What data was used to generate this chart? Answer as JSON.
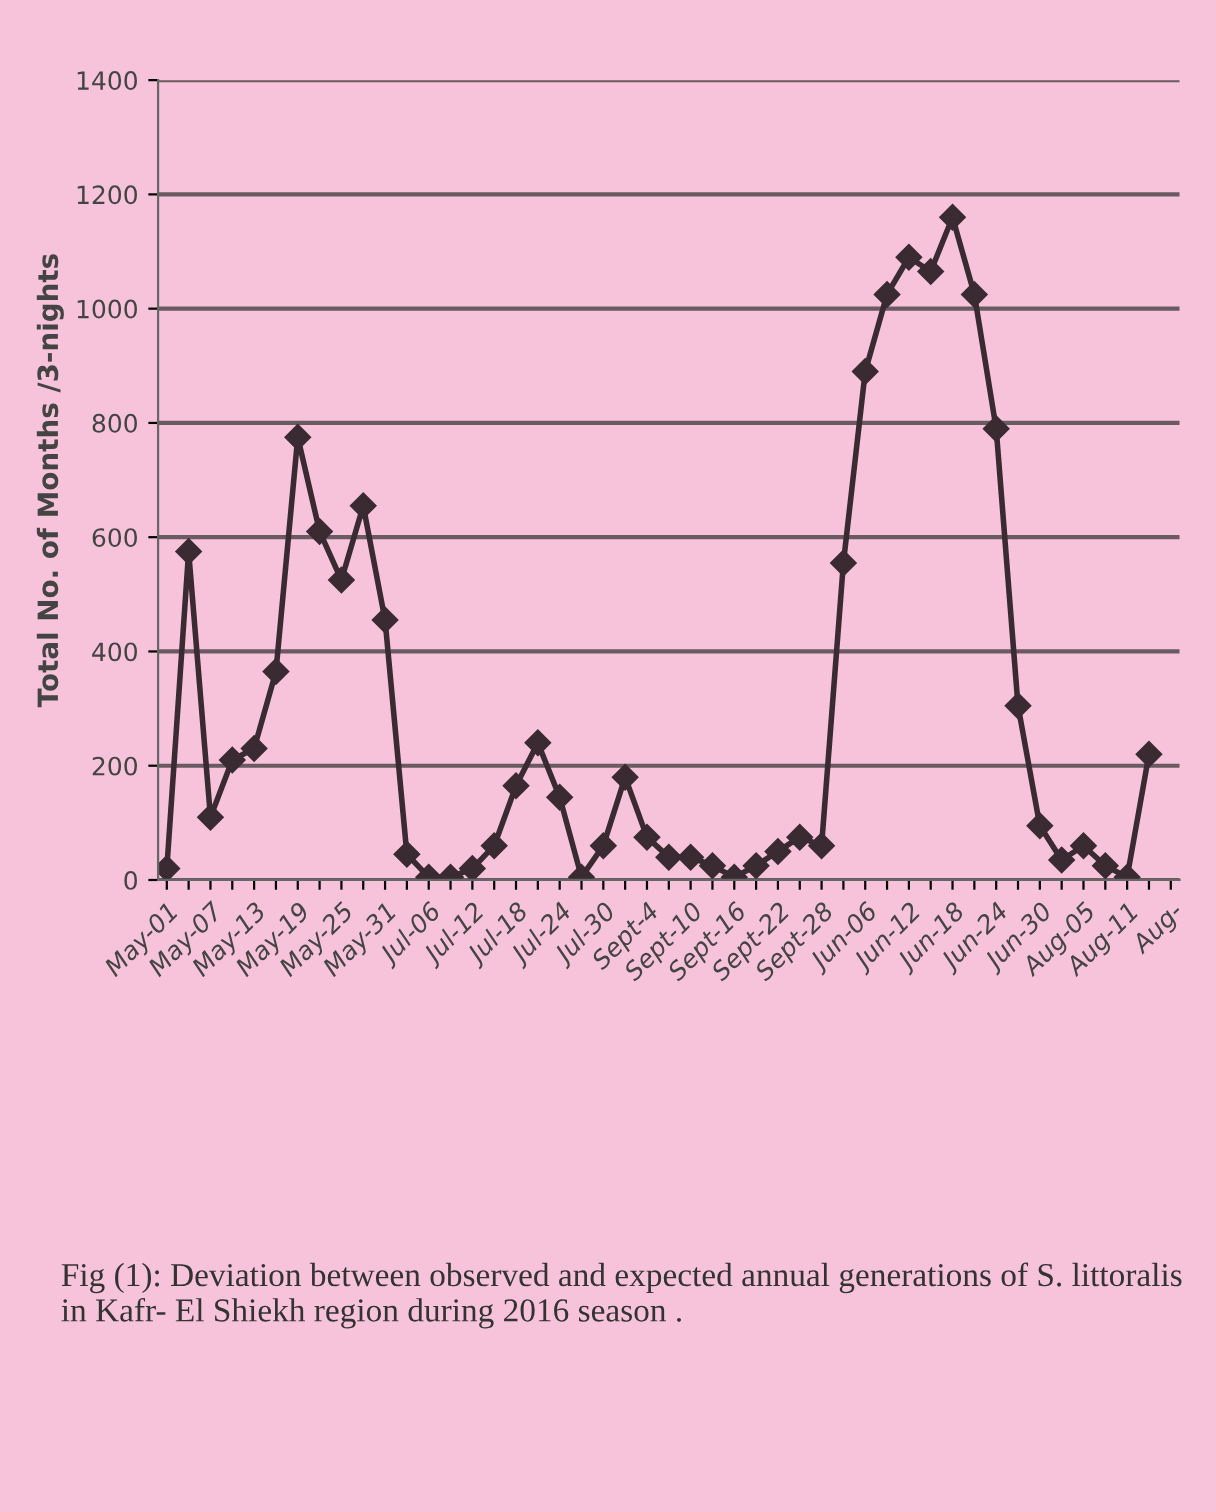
{
  "chart_data": {
    "type": "line",
    "ylabel": "Total No. of Months /3-nights",
    "categories": [
      "May-01",
      null,
      "May-07",
      null,
      "May-13",
      null,
      "May-19",
      null,
      "May-25",
      null,
      "May-31",
      null,
      "Jul-06",
      null,
      "Jul-12",
      null,
      "Jul-18",
      null,
      "Jul-24",
      null,
      "Jul-30",
      null,
      "Sept-4",
      null,
      "Sept-10",
      null,
      "Sept-16",
      null,
      "Sept-22",
      null,
      "Sept-28",
      null,
      "Jun-06",
      null,
      "Jun-12",
      null,
      "Jun-18",
      null,
      "Jun-24",
      null,
      "Jun-30",
      null,
      "Aug-05",
      null,
      "Aug-11",
      null,
      "Aug-"
    ],
    "series": [
      {
        "color": "#3a2a32",
        "values": [
          20,
          575,
          110,
          210,
          230,
          365,
          775,
          610,
          525,
          655,
          455,
          45,
          5,
          5,
          20,
          60,
          165,
          240,
          145,
          5,
          60,
          180,
          75,
          40,
          40,
          25,
          5,
          25,
          50,
          75,
          60,
          555,
          890,
          1025,
          1090,
          1065,
          1160,
          1025,
          790,
          305,
          95,
          35,
          60,
          25,
          5,
          220,
          null
        ]
      }
    ],
    "ylim": [
      0,
      1400
    ],
    "yticks": [
      0,
      200,
      400,
      600,
      800,
      1000,
      1200,
      1400
    ],
    "grid": "y",
    "marker": "diamond",
    "line_style": "solid",
    "annotations": [
      "Fig (1): Deviation between observed and expected annual generations of S. littoralis in Kafr- El Shiekh region during 2016 season ."
    ]
  }
}
